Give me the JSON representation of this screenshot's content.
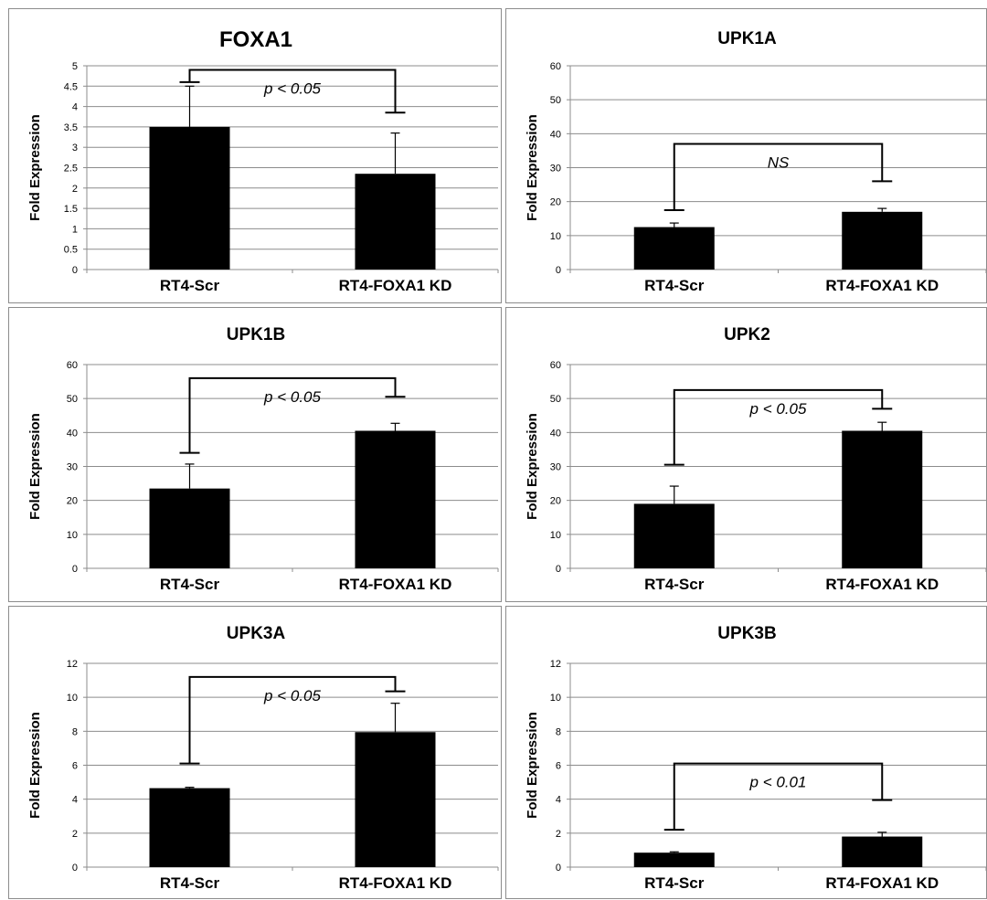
{
  "chart_data": [
    {
      "type": "bar",
      "title": "FOXA1",
      "ylabel": "Fold Expression",
      "categories": [
        "RT4-Scr",
        "RT4-FOXA1 KD"
      ],
      "values": [
        3.5,
        2.35
      ],
      "error": [
        1.0,
        1.0
      ],
      "ylim": [
        0,
        5
      ],
      "yticks": [
        "0",
        "0.5",
        "1",
        "1.5",
        "2",
        "2.5",
        "3",
        "3.5",
        "4",
        "4.5",
        "5"
      ],
      "significance": {
        "label": "p < 0.05",
        "level": 4.9,
        "left_end": 4.6,
        "right_end": 3.85
      },
      "grid": true
    },
    {
      "type": "bar",
      "title": "UPK1A",
      "ylabel": "Fold Expression",
      "categories": [
        "RT4-Scr",
        "RT4-FOXA1 KD"
      ],
      "values": [
        12.5,
        17
      ],
      "error": [
        1.2,
        1.0
      ],
      "ylim": [
        0,
        60
      ],
      "yticks": [
        "0",
        "10",
        "20",
        "30",
        "40",
        "50",
        "60"
      ],
      "significance": {
        "label": "NS",
        "level": 37,
        "left_end": 17.5,
        "right_end": 26
      },
      "grid": true
    },
    {
      "type": "bar",
      "title": "UPK1B",
      "ylabel": "Fold Expression",
      "categories": [
        "RT4-Scr",
        "RT4-FOXA1 KD"
      ],
      "values": [
        23.5,
        40.5
      ],
      "error": [
        7.2,
        2.2
      ],
      "ylim": [
        0,
        60
      ],
      "yticks": [
        "0",
        "10",
        "20",
        "30",
        "40",
        "50",
        "60"
      ],
      "significance": {
        "label": "p < 0.05",
        "level": 56,
        "left_end": 34,
        "right_end": 50.5
      },
      "grid": true
    },
    {
      "type": "bar",
      "title": "UPK2",
      "ylabel": "Fold Expression",
      "categories": [
        "RT4-Scr",
        "RT4-FOXA1 KD"
      ],
      "values": [
        19,
        40.5
      ],
      "error": [
        5.2,
        2.5
      ],
      "ylim": [
        0,
        60
      ],
      "yticks": [
        "0",
        "10",
        "20",
        "30",
        "40",
        "50",
        "60"
      ],
      "significance": {
        "label": "p < 0.05",
        "level": 52.5,
        "left_end": 30.5,
        "right_end": 47
      },
      "grid": true
    },
    {
      "type": "bar",
      "title": "UPK3A",
      "ylabel": "Fold Expression",
      "categories": [
        "RT4-Scr",
        "RT4-FOXA1 KD"
      ],
      "values": [
        4.65,
        7.95
      ],
      "error": [
        0.05,
        1.7
      ],
      "ylim": [
        0,
        12
      ],
      "yticks": [
        "0",
        "2",
        "4",
        "6",
        "8",
        "10",
        "12"
      ],
      "significance": {
        "label": "p < 0.05",
        "level": 11.2,
        "left_end": 6.1,
        "right_end": 10.35
      },
      "grid": true
    },
    {
      "type": "bar",
      "title": "UPK3B",
      "ylabel": "Fold Expression",
      "categories": [
        "RT4-Scr",
        "RT4-FOXA1 KD"
      ],
      "values": [
        0.85,
        1.8
      ],
      "error": [
        0.05,
        0.25
      ],
      "ylim": [
        0,
        12
      ],
      "yticks": [
        "0",
        "2",
        "4",
        "6",
        "8",
        "10",
        "12"
      ],
      "significance": {
        "label": "p < 0.01",
        "level": 6.1,
        "left_end": 2.2,
        "right_end": 3.95
      },
      "grid": true
    }
  ],
  "colors": {
    "bar": "#000000",
    "grid": "#8c8c8c",
    "axis": "#8c8c8c",
    "border": "#8c8c8c"
  }
}
